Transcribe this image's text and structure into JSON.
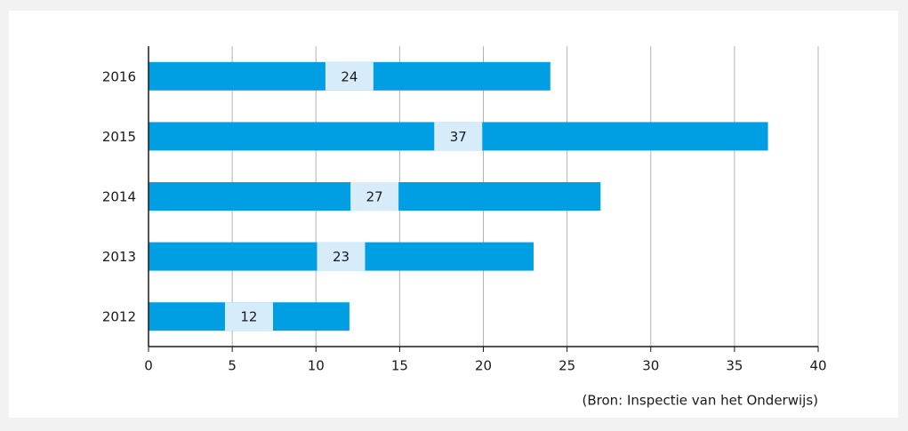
{
  "chart_data": {
    "type": "bar",
    "orientation": "horizontal",
    "categories": [
      "2016",
      "2015",
      "2014",
      "2013",
      "2012"
    ],
    "values": [
      24,
      37,
      27,
      23,
      12
    ],
    "color": "#009fe3",
    "label_color": "#d7ecfa",
    "xlim": [
      0,
      40
    ],
    "xticks": [
      0,
      5,
      10,
      15,
      20,
      25,
      30,
      35,
      40
    ],
    "grid": true,
    "source": "(Bron: Inspectie van het Onderwijs)"
  }
}
